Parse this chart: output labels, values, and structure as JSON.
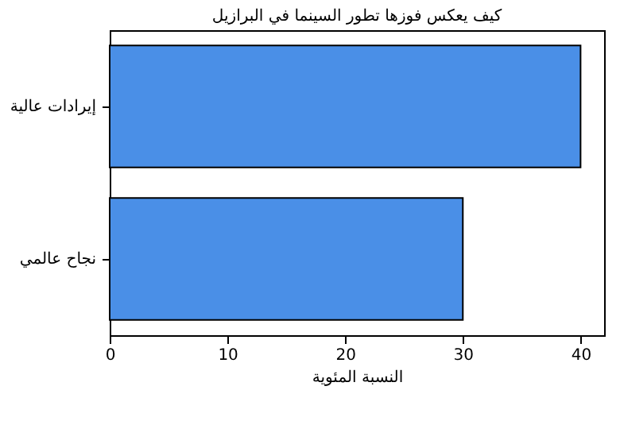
{
  "chart_data": {
    "type": "bar",
    "orientation": "horizontal",
    "title": "كيف يعكس فوزها تطور السينما في البرازيل",
    "xlabel": "النسبة المئوية",
    "categories": [
      "إيرادات عالية",
      "نجاح عالمي"
    ],
    "values": [
      40,
      30
    ],
    "color": "#4a8fe7",
    "xlim": [
      0,
      42
    ],
    "xticks": [
      0,
      10,
      20,
      30,
      40
    ],
    "grid": false
  }
}
